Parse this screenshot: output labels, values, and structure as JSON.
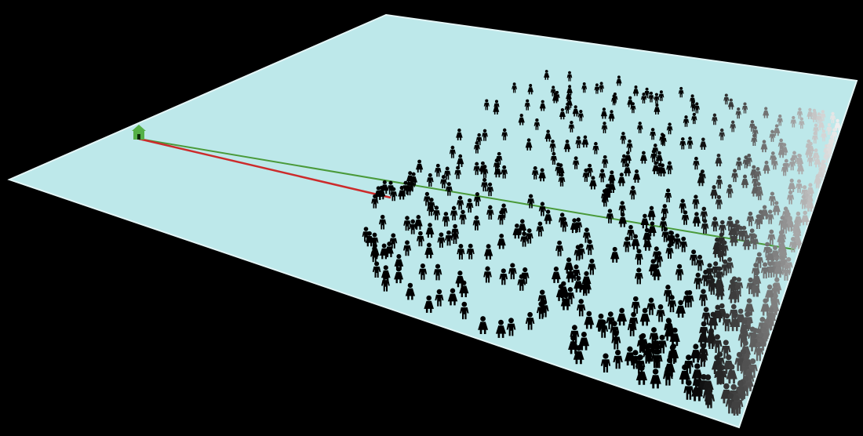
{
  "scene": {
    "background_color": "#000000",
    "ground_color": "#bde8ea",
    "ground_edge_color": "#e4f6f7",
    "house_icon": "house-icon",
    "house_color": "#55b047",
    "person_icon": "person-icon",
    "near_person_color": "#000000",
    "far_person_color": "#ffffff",
    "green_line_color": "#4a9a3a",
    "red_line_color": "#cc2b2b",
    "person_count": 560
  }
}
